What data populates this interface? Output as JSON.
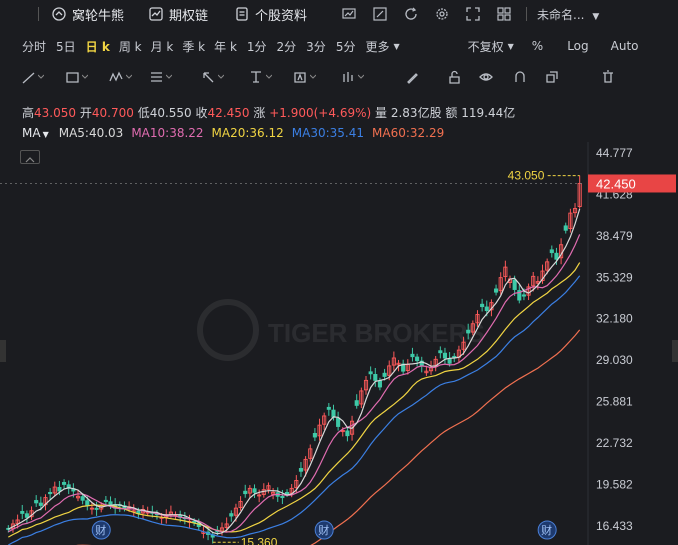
{
  "toolbar": {
    "items": [
      {
        "icon": "bull-bear-icon",
        "label": "窝轮牛熊"
      },
      {
        "icon": "options-chain-icon",
        "label": "期权链"
      },
      {
        "icon": "document-icon",
        "label": "个股资料"
      }
    ],
    "tool_icons": [
      "chart-screen-icon",
      "edit-icon",
      "refresh-icon",
      "settings-icon",
      "fullscreen-icon",
      "layout-grid-icon"
    ],
    "layout_name": "未命名..."
  },
  "periods": {
    "items": [
      "分时",
      "5日",
      "日 k",
      "周 k",
      "月 k",
      "季 k",
      "年 k",
      "1分",
      "2分",
      "3分",
      "5分",
      "更多"
    ],
    "active": "日 k",
    "adjust": "不复权",
    "percent": "%",
    "log": "Log",
    "auto": "Auto"
  },
  "drawing_tools": [
    "line-tool-icon",
    "rect-tool-icon",
    "wave-tool-icon",
    "fib-tool-icon",
    "arrow-tool-icon",
    "measure-tool-icon",
    "text-tool-icon",
    "bar-pattern-icon",
    "pen-icon",
    "lock-icon",
    "eye-icon",
    "magnet-icon",
    "layers-icon",
    "trash-icon"
  ],
  "quote": {
    "high_label": "高",
    "high": "43.050",
    "open_label": "开",
    "open": "40.700",
    "low_label": "低",
    "low": "40.550",
    "close_label": "收",
    "close": "42.450",
    "change_label": "涨",
    "change": "+1.900(+4.69%)",
    "volume_label": "量",
    "volume": "2.83亿股",
    "amount_label": "额",
    "amount": "119.44亿"
  },
  "ma": {
    "label": "MA",
    "ma5": "MA5:40.03",
    "ma10": "MA10:38.22",
    "ma20": "MA20:36.12",
    "ma30": "MA30:35.41",
    "ma60": "MA60:32.29"
  },
  "colors": {
    "up": "#ff5a5a",
    "down": "#3ec9a7",
    "ma5": "#d9d9d9",
    "ma10": "#e06cb0",
    "ma20": "#f0d443",
    "ma30": "#3b7fe3",
    "ma60": "#f07050",
    "price_tag": "#e84545"
  },
  "chart_data": {
    "type": "candlestick",
    "y_ticks": [
      "44.777",
      "41.628",
      "38.479",
      "35.329",
      "32.180",
      "29.030",
      "25.881",
      "22.732",
      "19.582",
      "16.433"
    ],
    "ylim": [
      15.0,
      45.6
    ],
    "current_price": "42.450",
    "high_marker": "43.050",
    "low_marker": "15.360",
    "event_marker": "财",
    "event_positions": [
      20,
      68,
      116
    ],
    "watermark": "TIGER BROKERS",
    "closes": [
      16.2,
      16.6,
      16.9,
      17.4,
      17.1,
      17.6,
      18.2,
      18.0,
      18.6,
      18.9,
      19.4,
      19.1,
      19.6,
      19.3,
      19.1,
      18.7,
      18.4,
      18.0,
      17.8,
      17.7,
      18.0,
      18.3,
      18.1,
      17.8,
      18.0,
      17.8,
      17.9,
      17.6,
      17.4,
      17.7,
      17.5,
      17.4,
      17.3,
      17.1,
      17.3,
      17.5,
      17.3,
      17.1,
      17.0,
      16.8,
      16.7,
      16.4,
      16.0,
      15.8,
      15.6,
      16.0,
      16.3,
      16.6,
      17.2,
      17.8,
      18.3,
      18.9,
      19.3,
      19.0,
      18.8,
      19.2,
      19.5,
      19.0,
      18.7,
      18.6,
      18.9,
      19.3,
      19.9,
      20.6,
      21.5,
      22.3,
      23.2,
      24.1,
      24.8,
      25.3,
      24.7,
      24.0,
      23.7,
      23.3,
      24.4,
      25.6,
      26.7,
      27.5,
      28.0,
      27.5,
      27.0,
      27.8,
      28.6,
      29.2,
      28.8,
      28.2,
      28.7,
      29.3,
      29.0,
      28.6,
      28.2,
      28.5,
      29.1,
      29.6,
      29.2,
      28.8,
      29.2,
      29.8,
      30.4,
      31.1,
      31.8,
      32.5,
      33.1,
      32.8,
      33.4,
      34.2,
      35.3,
      36.1,
      35.2,
      34.4,
      33.6,
      33.9,
      34.6,
      35.4,
      35.0,
      35.8,
      36.5,
      37.2,
      36.7,
      37.8,
      38.9,
      40.2,
      40.55,
      42.45
    ]
  }
}
